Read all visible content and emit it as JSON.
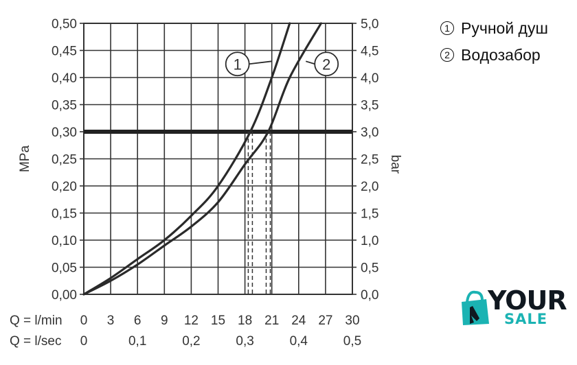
{
  "chart_data": {
    "type": "line",
    "left_axis": {
      "label": "MPa",
      "range": [
        0,
        0.5
      ],
      "ticks": [
        "0,00",
        "0,05",
        "0,10",
        "0,15",
        "0,20",
        "0,25",
        "0,30",
        "0,35",
        "0,40",
        "0,45",
        "0,50"
      ]
    },
    "right_axis": {
      "label": "bar",
      "range": [
        0,
        5
      ],
      "ticks": [
        "0,0",
        "0,5",
        "1,0",
        "1,5",
        "2,0",
        "2,5",
        "3,0",
        "3,5",
        "4,0",
        "4,5",
        "5,0"
      ]
    },
    "x_axis": {
      "unit": "l/min",
      "range": [
        0,
        30
      ],
      "row1_label": "Q = l/min",
      "row1_ticks": [
        {
          "x": 0,
          "label": "0"
        },
        {
          "x": 3,
          "label": "3"
        },
        {
          "x": 6,
          "label": "6"
        },
        {
          "x": 9,
          "label": "9"
        },
        {
          "x": 12,
          "label": "12"
        },
        {
          "x": 15,
          "label": "15"
        },
        {
          "x": 18,
          "label": "18"
        },
        {
          "x": 21,
          "label": "21"
        },
        {
          "x": 24,
          "label": "24"
        },
        {
          "x": 27,
          "label": "27"
        },
        {
          "x": 30,
          "label": "30"
        }
      ],
      "row2_label": "Q = l/sec",
      "row2_ticks": [
        {
          "x": 0,
          "label": "0"
        },
        {
          "x": 6,
          "label": "0,1"
        },
        {
          "x": 12,
          "label": "0,2"
        },
        {
          "x": 18,
          "label": "0,3"
        },
        {
          "x": 24,
          "label": "0,4"
        },
        {
          "x": 30,
          "label": "0,5"
        }
      ]
    },
    "grid": true,
    "reference_line": {
      "y": 0.3
    },
    "drop_lines": [
      {
        "x": 18.6,
        "y": 0.3
      },
      {
        "x": 20.6,
        "y": 0.3
      }
    ],
    "series": [
      {
        "name": "Ручной душ",
        "marker": "1",
        "x": [
          0,
          3,
          6,
          9,
          12,
          15,
          18.6,
          21,
          23
        ],
        "y": [
          0,
          0.03,
          0.065,
          0.1,
          0.145,
          0.2,
          0.3,
          0.4,
          0.5
        ]
      },
      {
        "name": "Водозабор",
        "marker": "2",
        "x": [
          0,
          3,
          6,
          9,
          12,
          15,
          18,
          20.6,
          23,
          26.5
        ],
        "y": [
          0,
          0.025,
          0.055,
          0.09,
          0.125,
          0.17,
          0.24,
          0.3,
          0.4,
          0.5
        ]
      }
    ],
    "series_callouts": [
      {
        "marker": "1",
        "anchor": {
          "x": 21.0,
          "y": 0.43
        }
      },
      {
        "marker": "2",
        "anchor": {
          "x": 24.8,
          "y": 0.43
        }
      }
    ]
  },
  "legend": [
    {
      "marker": "1",
      "label": "Ручной душ"
    },
    {
      "marker": "2",
      "label": "Водозабор"
    }
  ],
  "logo": {
    "word1": "YOUR",
    "word2": "SALE",
    "colors": {
      "dark": "#101820",
      "teal": "#1bb3b3"
    }
  }
}
